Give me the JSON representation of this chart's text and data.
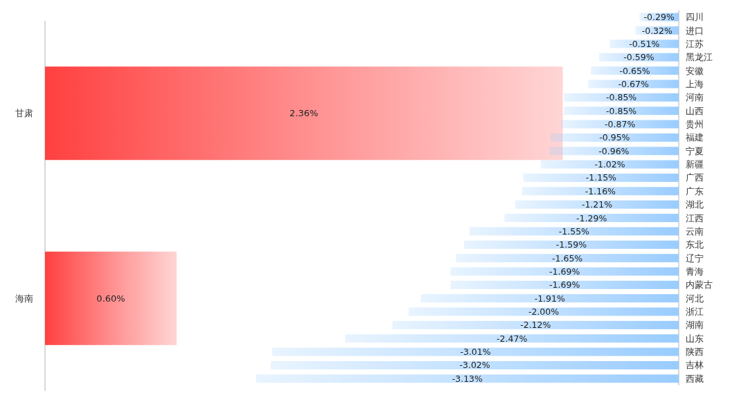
{
  "chart_data": [
    {
      "type": "bar",
      "orientation": "horizontal",
      "categories": [
        "甘肃",
        "海南"
      ],
      "values": [
        2.36,
        0.6
      ],
      "value_labels": [
        "2.36%",
        "0.60%"
      ],
      "color": "#ff4040",
      "tick_labels": "y"
    },
    {
      "type": "bar",
      "orientation": "horizontal",
      "categories": [
        "四川",
        "进口",
        "江苏",
        "黑龙江",
        "安徽",
        "上海",
        "河南",
        "山西",
        "贵州",
        "福建",
        "宁夏",
        "新疆",
        "广西",
        "广东",
        "湖北",
        "江西",
        "云南",
        "东北",
        "辽宁",
        "青海",
        "内蒙古",
        "河北",
        "浙江",
        "湖南",
        "山东",
        "陕西",
        "吉林",
        "西藏"
      ],
      "values": [
        -0.29,
        -0.32,
        -0.51,
        -0.59,
        -0.65,
        -0.67,
        -0.85,
        -0.85,
        -0.87,
        -0.95,
        -0.96,
        -1.02,
        -1.15,
        -1.16,
        -1.21,
        -1.29,
        -1.55,
        -1.59,
        -1.65,
        -1.69,
        -1.69,
        -1.91,
        -2.0,
        -2.12,
        -2.47,
        -3.01,
        -3.02,
        -3.13
      ],
      "value_labels": [
        "-0.29%",
        "-0.32%",
        "-0.51%",
        "-0.59%",
        "-0.65%",
        "-0.67%",
        "-0.85%",
        "-0.85%",
        "-0.87%",
        "-0.95%",
        "-0.96%",
        "-1.02%",
        "-1.15%",
        "-1.16%",
        "-1.21%",
        "-1.29%",
        "-1.55%",
        "-1.59%",
        "-1.65%",
        "-1.69%",
        "-1.69%",
        "-1.91%",
        "-2.00%",
        "-2.12%",
        "-2.47%",
        "-3.01%",
        "-3.02%",
        "-3.13%"
      ],
      "color": "#99ccff",
      "tick_labels": "y"
    }
  ]
}
